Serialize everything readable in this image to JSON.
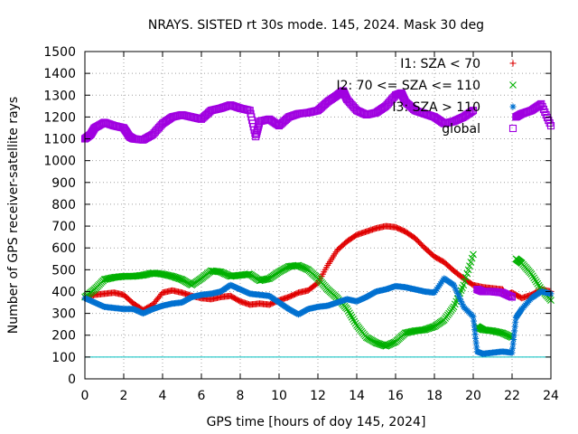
{
  "chart_data": {
    "type": "scatter",
    "title": "NRAYS. SISTED rt 30s mode. 145, 2024. Mask 30 deg",
    "xlabel": "GPS time [hours of doy 145, 2024]",
    "ylabel": "Number of GPS receiver-satellite rays",
    "xlim": [
      0,
      24
    ],
    "ylim": [
      0,
      1500
    ],
    "x_ticks": [
      "0",
      "2",
      "4",
      "6",
      "8",
      "10",
      "12",
      "14",
      "16",
      "18",
      "20",
      "22",
      "24"
    ],
    "y_ticks": [
      "0",
      "100",
      "200",
      "300",
      "400",
      "500",
      "600",
      "700",
      "800",
      "900",
      "1000",
      "1100",
      "1200",
      "1300",
      "1400",
      "1500"
    ],
    "reference_line": {
      "y": 100,
      "color": "#00c0c0"
    },
    "series": [
      {
        "name": "I1: SZA < 70",
        "marker": "+",
        "color": "#e00000",
        "points": [
          [
            0,
            370
          ],
          [
            0.5,
            385
          ],
          [
            1,
            390
          ],
          [
            1.5,
            395
          ],
          [
            2,
            385
          ],
          [
            2.5,
            345
          ],
          [
            3,
            315
          ],
          [
            3.5,
            340
          ],
          [
            4,
            395
          ],
          [
            4.5,
            405
          ],
          [
            5,
            395
          ],
          [
            5.5,
            380
          ],
          [
            6,
            370
          ],
          [
            6.5,
            365
          ],
          [
            7,
            375
          ],
          [
            7.5,
            380
          ],
          [
            8,
            355
          ],
          [
            8.5,
            340
          ],
          [
            9,
            345
          ],
          [
            9.5,
            340
          ],
          [
            10,
            360
          ],
          [
            10.5,
            375
          ],
          [
            11,
            395
          ],
          [
            11.5,
            405
          ],
          [
            12,
            440
          ],
          [
            12.5,
            520
          ],
          [
            13,
            590
          ],
          [
            13.5,
            630
          ],
          [
            14,
            660
          ],
          [
            14.5,
            675
          ],
          [
            15,
            690
          ],
          [
            15.5,
            700
          ],
          [
            16,
            695
          ],
          [
            16.5,
            675
          ],
          [
            17,
            645
          ],
          [
            17.5,
            600
          ],
          [
            18,
            560
          ],
          [
            18.5,
            535
          ],
          [
            19,
            495
          ],
          [
            19.5,
            460
          ],
          [
            20,
            430
          ],
          [
            20.5,
            420
          ],
          [
            21,
            415
          ],
          [
            21.5,
            410
          ],
          [
            21.7,
            385
          ],
          [
            22,
            395
          ],
          [
            22.5,
            370
          ],
          [
            23,
            385
          ],
          [
            23.5,
            410
          ],
          [
            24,
            400
          ]
        ]
      },
      {
        "name": "I2: 70 <= SZA <= 110",
        "marker": "x",
        "color": "#00b000",
        "points": [
          [
            0,
            375
          ],
          [
            0.5,
            410
          ],
          [
            1,
            455
          ],
          [
            1.5,
            465
          ],
          [
            2,
            470
          ],
          [
            2.5,
            470
          ],
          [
            3,
            475
          ],
          [
            3.5,
            485
          ],
          [
            4,
            480
          ],
          [
            4.5,
            470
          ],
          [
            5,
            455
          ],
          [
            5.5,
            430
          ],
          [
            6,
            460
          ],
          [
            6.5,
            495
          ],
          [
            7,
            490
          ],
          [
            7.5,
            470
          ],
          [
            8,
            475
          ],
          [
            8.5,
            480
          ],
          [
            9,
            450
          ],
          [
            9.5,
            460
          ],
          [
            10,
            490
          ],
          [
            10.5,
            515
          ],
          [
            11,
            520
          ],
          [
            11.5,
            500
          ],
          [
            12,
            460
          ],
          [
            12.5,
            410
          ],
          [
            13,
            370
          ],
          [
            13.5,
            320
          ],
          [
            14,
            245
          ],
          [
            14.5,
            190
          ],
          [
            15,
            165
          ],
          [
            15.5,
            150
          ],
          [
            16,
            170
          ],
          [
            16.5,
            210
          ],
          [
            17,
            220
          ],
          [
            17.5,
            225
          ],
          [
            18,
            240
          ],
          [
            18.5,
            270
          ],
          [
            19,
            330
          ],
          [
            19.5,
            430
          ],
          [
            20,
            570
          ],
          [
            20.2,
            240
          ],
          [
            20.5,
            225
          ],
          [
            21,
            220
          ],
          [
            21.5,
            210
          ],
          [
            22,
            190
          ],
          [
            22.2,
            550
          ],
          [
            22.5,
            530
          ],
          [
            23,
            480
          ],
          [
            23.5,
            410
          ],
          [
            24,
            360
          ]
        ]
      },
      {
        "name": "I3: SZA > 110",
        "marker": "*",
        "color": "#0070d0",
        "points": [
          [
            0,
            370
          ],
          [
            0.5,
            350
          ],
          [
            1,
            330
          ],
          [
            1.5,
            325
          ],
          [
            2,
            320
          ],
          [
            2.5,
            320
          ],
          [
            3,
            300
          ],
          [
            3.5,
            320
          ],
          [
            4,
            335
          ],
          [
            4.5,
            345
          ],
          [
            5,
            350
          ],
          [
            5.5,
            375
          ],
          [
            6,
            385
          ],
          [
            6.5,
            390
          ],
          [
            7,
            400
          ],
          [
            7.5,
            430
          ],
          [
            8,
            410
          ],
          [
            8.5,
            390
          ],
          [
            9,
            385
          ],
          [
            9.5,
            380
          ],
          [
            10,
            350
          ],
          [
            10.5,
            320
          ],
          [
            11,
            295
          ],
          [
            11.5,
            320
          ],
          [
            12,
            330
          ],
          [
            12.5,
            335
          ],
          [
            13,
            350
          ],
          [
            13.5,
            365
          ],
          [
            14,
            355
          ],
          [
            14.5,
            375
          ],
          [
            15,
            400
          ],
          [
            15.5,
            410
          ],
          [
            16,
            425
          ],
          [
            16.5,
            420
          ],
          [
            17,
            410
          ],
          [
            17.5,
            400
          ],
          [
            18,
            395
          ],
          [
            18.5,
            460
          ],
          [
            19,
            430
          ],
          [
            19.5,
            330
          ],
          [
            20,
            285
          ],
          [
            20.2,
            125
          ],
          [
            20.5,
            115
          ],
          [
            21,
            120
          ],
          [
            21.5,
            125
          ],
          [
            22,
            120
          ],
          [
            22.2,
            280
          ],
          [
            22.5,
            320
          ],
          [
            23,
            370
          ],
          [
            23.5,
            400
          ],
          [
            24,
            390
          ]
        ]
      },
      {
        "name": "global",
        "marker": "square",
        "color": "#a000e0",
        "points": [
          [
            0,
            1100
          ],
          [
            0.3,
            1120
          ],
          [
            0.5,
            1150
          ],
          [
            1,
            1175
          ],
          [
            1.5,
            1160
          ],
          [
            2,
            1150
          ],
          [
            2.3,
            1110
          ],
          [
            2.5,
            1100
          ],
          [
            3,
            1095
          ],
          [
            3.5,
            1120
          ],
          [
            4,
            1170
          ],
          [
            4.5,
            1200
          ],
          [
            5,
            1210
          ],
          [
            5.5,
            1200
          ],
          [
            6,
            1190
          ],
          [
            6.5,
            1230
          ],
          [
            7,
            1240
          ],
          [
            7.5,
            1255
          ],
          [
            8,
            1240
          ],
          [
            8.5,
            1230
          ],
          [
            8.8,
            1110
          ],
          [
            9,
            1180
          ],
          [
            9.5,
            1190
          ],
          [
            10,
            1160
          ],
          [
            10.5,
            1200
          ],
          [
            11,
            1215
          ],
          [
            11.5,
            1220
          ],
          [
            12,
            1230
          ],
          [
            12.5,
            1270
          ],
          [
            13,
            1300
          ],
          [
            13.3,
            1320
          ],
          [
            13.5,
            1280
          ],
          [
            14,
            1230
          ],
          [
            14.5,
            1210
          ],
          [
            15,
            1220
          ],
          [
            15.5,
            1250
          ],
          [
            16,
            1300
          ],
          [
            16.3,
            1310
          ],
          [
            16.5,
            1270
          ],
          [
            17,
            1230
          ],
          [
            17.5,
            1215
          ],
          [
            18,
            1200
          ],
          [
            18.5,
            1170
          ],
          [
            19,
            1180
          ],
          [
            19.5,
            1200
          ],
          [
            20,
            1230
          ],
          [
            20.2,
            410
          ],
          [
            20.5,
            400
          ],
          [
            21,
            400
          ],
          [
            21.5,
            395
          ],
          [
            22,
            375
          ],
          [
            22.2,
            1200
          ],
          [
            22.5,
            1215
          ],
          [
            23,
            1230
          ],
          [
            23.5,
            1260
          ],
          [
            24,
            1160
          ]
        ]
      }
    ]
  }
}
